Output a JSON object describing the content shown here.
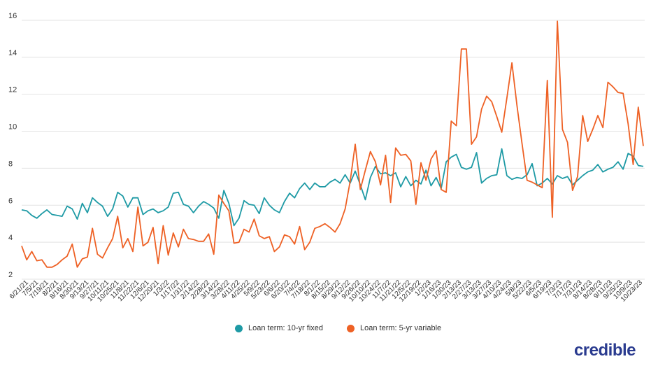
{
  "brand": "credible",
  "colors": {
    "series1": "#1e9aa5",
    "series2": "#ee6125",
    "grid": "#e3e3e3"
  },
  "chart_data": {
    "type": "line",
    "title": "",
    "xlabel": "",
    "ylabel": "",
    "ylim": [
      2,
      16
    ],
    "yticks": [
      2,
      4,
      6,
      8,
      10,
      12,
      14,
      16
    ],
    "x_labels": [
      "6/21/21",
      "7/5/21",
      "7/19/21",
      "8/2/21",
      "8/16/21",
      "8/30/21",
      "9/13/21",
      "9/27/21",
      "10/11/21",
      "10/25/21",
      "11/8/21",
      "11/22/21",
      "12/6/21",
      "12/20/21",
      "1/3/22",
      "1/17/22",
      "1/31/22",
      "2/14/22",
      "2/28/22",
      "3/14/22",
      "3/28/22",
      "4/11/22",
      "4/25/22",
      "5/9/22",
      "5/23/22",
      "6/6/22",
      "6/20/22",
      "7/4/22",
      "7/18/22",
      "8/1/22",
      "8/15/22",
      "8/29/22",
      "9/12/22",
      "9/26/22",
      "10/10/22",
      "10/24/22",
      "11/7/22",
      "11/21/22",
      "12/5/22",
      "12/19/22",
      "1/2/23",
      "1/16/23",
      "1/30/23",
      "2/13/23",
      "2/27/23",
      "3/13/23",
      "3/27/23",
      "4/10/23",
      "4/24/23",
      "5/8/23",
      "5/22/23",
      "6/5/23",
      "6/19/23",
      "7/3/23",
      "7/17/23",
      "7/31/23",
      "8/14/23",
      "8/28/23",
      "9/11/23",
      "9/25/23",
      "10/9/23",
      "10/23/23"
    ],
    "series": [
      {
        "name": "Loan term: 10-yr fixed",
        "values": [
          5.75,
          5.7,
          5.45,
          5.3,
          5.55,
          5.75,
          5.5,
          5.45,
          5.4,
          5.95,
          5.8,
          5.25,
          6.1,
          5.6,
          6.4,
          6.15,
          5.95,
          5.4,
          5.8,
          6.7,
          6.5,
          5.9,
          6.4,
          6.4,
          5.5,
          5.7,
          5.8,
          5.6,
          5.7,
          5.9,
          6.65,
          6.7,
          6.05,
          5.95,
          5.6,
          5.95,
          6.2,
          6.05,
          5.85,
          5.3,
          6.8,
          6.1,
          4.9,
          5.3,
          6.25,
          6.05,
          6.0,
          5.55,
          6.4,
          6.0,
          5.75,
          5.6,
          6.2,
          6.65,
          6.4,
          6.9,
          7.2,
          6.85,
          7.2,
          7.0,
          7.0,
          7.25,
          7.4,
          7.2,
          7.65,
          7.2,
          7.85,
          7.1,
          6.3,
          7.5,
          8.1,
          7.7,
          7.75,
          7.6,
          7.75,
          7.0,
          7.55,
          7.05,
          7.35,
          7.15,
          7.9,
          7.05,
          7.5,
          6.9,
          8.35,
          8.6,
          8.75,
          8.05,
          7.95,
          8.05,
          8.85,
          7.2,
          7.45,
          7.6,
          7.65,
          9.05,
          7.6,
          7.4,
          7.5,
          7.45,
          7.65,
          8.25,
          7.05,
          7.2,
          7.45,
          7.15,
          7.6,
          7.45,
          7.55,
          7.1,
          7.35,
          7.6,
          7.8,
          7.9,
          8.2,
          7.8,
          7.95,
          8.05,
          8.35,
          7.95,
          8.8,
          8.65,
          8.15,
          8.1
        ]
      },
      {
        "name": "Loan term: 5-yr variable",
        "values": [
          3.8,
          3.05,
          3.5,
          3.0,
          3.05,
          2.65,
          2.65,
          2.8,
          3.05,
          3.25,
          3.9,
          2.65,
          3.1,
          3.2,
          4.75,
          3.35,
          3.15,
          3.7,
          4.2,
          5.4,
          3.7,
          4.2,
          3.5,
          5.9,
          3.8,
          4.0,
          4.8,
          2.85,
          4.9,
          3.3,
          4.5,
          3.75,
          4.7,
          4.2,
          4.15,
          4.05,
          4.05,
          4.45,
          3.35,
          6.55,
          6.1,
          5.7,
          3.95,
          4.0,
          4.7,
          4.55,
          5.25,
          4.35,
          4.2,
          4.3,
          3.5,
          3.75,
          4.4,
          4.3,
          3.9,
          4.85,
          3.6,
          4.0,
          4.75,
          4.85,
          5.0,
          4.8,
          4.55,
          5.0,
          5.8,
          7.3,
          9.3,
          6.85,
          7.9,
          8.9,
          8.35,
          7.1,
          8.7,
          6.15,
          9.1,
          8.7,
          8.75,
          8.4,
          6.05,
          8.3,
          7.35,
          8.5,
          8.95,
          6.85,
          6.7,
          10.55,
          10.3,
          14.45,
          14.45,
          9.3,
          9.7,
          11.2,
          11.9,
          11.6,
          10.8,
          9.95,
          11.8,
          13.7,
          11.4,
          9.35,
          7.35,
          7.25,
          7.1,
          6.95,
          12.75,
          5.35,
          15.95,
          10.1,
          9.4,
          6.8,
          7.55,
          10.85,
          9.45,
          10.1,
          10.85,
          10.2,
          12.65,
          12.4,
          12.1,
          12.05,
          10.4,
          8.2,
          11.3,
          9.2
        ]
      }
    ],
    "legend_position": "bottom-center",
    "grid": true
  }
}
